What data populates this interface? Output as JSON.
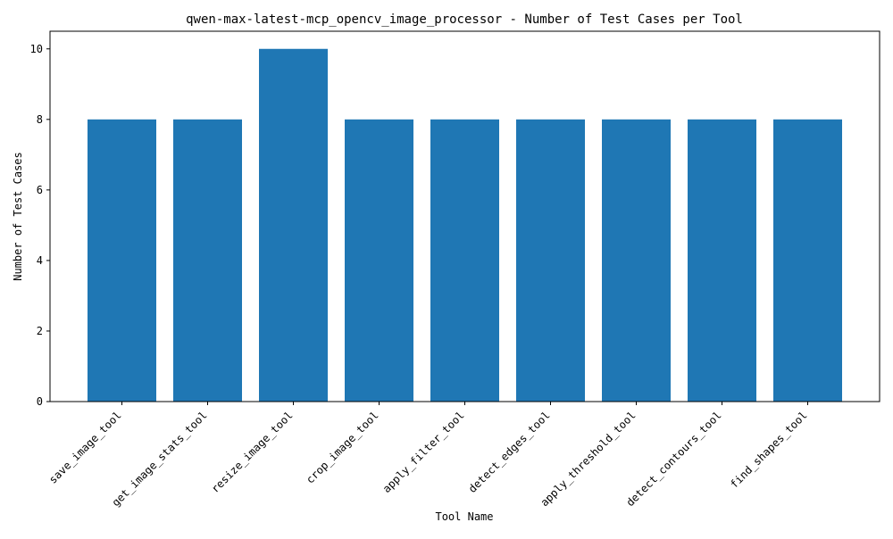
{
  "chart_data": {
    "type": "bar",
    "title": "qwen-max-latest-mcp_opencv_image_processor - Number of Test Cases per Tool",
    "xlabel": "Tool Name",
    "ylabel": "Number of Test Cases",
    "categories": [
      "save_image_tool",
      "get_image_stats_tool",
      "resize_image_tool",
      "crop_image_tool",
      "apply_filter_tool",
      "detect_edges_tool",
      "apply_threshold_tool",
      "detect_contours_tool",
      "find_shapes_tool"
    ],
    "values": [
      8,
      8,
      10,
      8,
      8,
      8,
      8,
      8,
      8
    ],
    "ylim": [
      0,
      10.5
    ],
    "yticks": [
      0,
      2,
      4,
      6,
      8,
      10
    ],
    "grid": false,
    "bar_color": "#1f77b4"
  }
}
